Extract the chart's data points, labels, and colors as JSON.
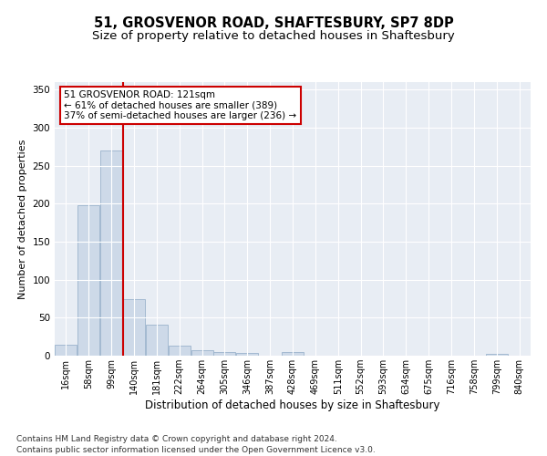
{
  "title1": "51, GROSVENOR ROAD, SHAFTESBURY, SP7 8DP",
  "title2": "Size of property relative to detached houses in Shaftesbury",
  "xlabel": "Distribution of detached houses by size in Shaftesbury",
  "ylabel": "Number of detached properties",
  "footnote": "Contains HM Land Registry data © Crown copyright and database right 2024.\nContains public sector information licensed under the Open Government Licence v3.0.",
  "bin_labels": [
    "16sqm",
    "58sqm",
    "99sqm",
    "140sqm",
    "181sqm",
    "222sqm",
    "264sqm",
    "305sqm",
    "346sqm",
    "387sqm",
    "428sqm",
    "469sqm",
    "511sqm",
    "552sqm",
    "593sqm",
    "634sqm",
    "675sqm",
    "716sqm",
    "758sqm",
    "799sqm",
    "840sqm"
  ],
  "bar_values": [
    14,
    198,
    270,
    75,
    41,
    13,
    7,
    5,
    4,
    0,
    5,
    0,
    0,
    0,
    0,
    0,
    0,
    0,
    0,
    3,
    0
  ],
  "bar_color": "#cdd9e8",
  "bar_edge_color": "#9ab3cc",
  "property_line_x": 2.53,
  "annotation_text": "51 GROSVENOR ROAD: 121sqm\n← 61% of detached houses are smaller (389)\n37% of semi-detached houses are larger (236) →",
  "annotation_box_color": "#ffffff",
  "annotation_box_edge_color": "#cc0000",
  "red_line_color": "#cc0000",
  "ylim": [
    0,
    360
  ],
  "yticks": [
    0,
    50,
    100,
    150,
    200,
    250,
    300,
    350
  ],
  "plot_bg_color": "#e8edf4",
  "title1_fontsize": 10.5,
  "title2_fontsize": 9.5,
  "xlabel_fontsize": 8.5,
  "ylabel_fontsize": 8,
  "tick_fontsize": 7.5,
  "annotation_fontsize": 7.5,
  "footnote_fontsize": 6.5
}
